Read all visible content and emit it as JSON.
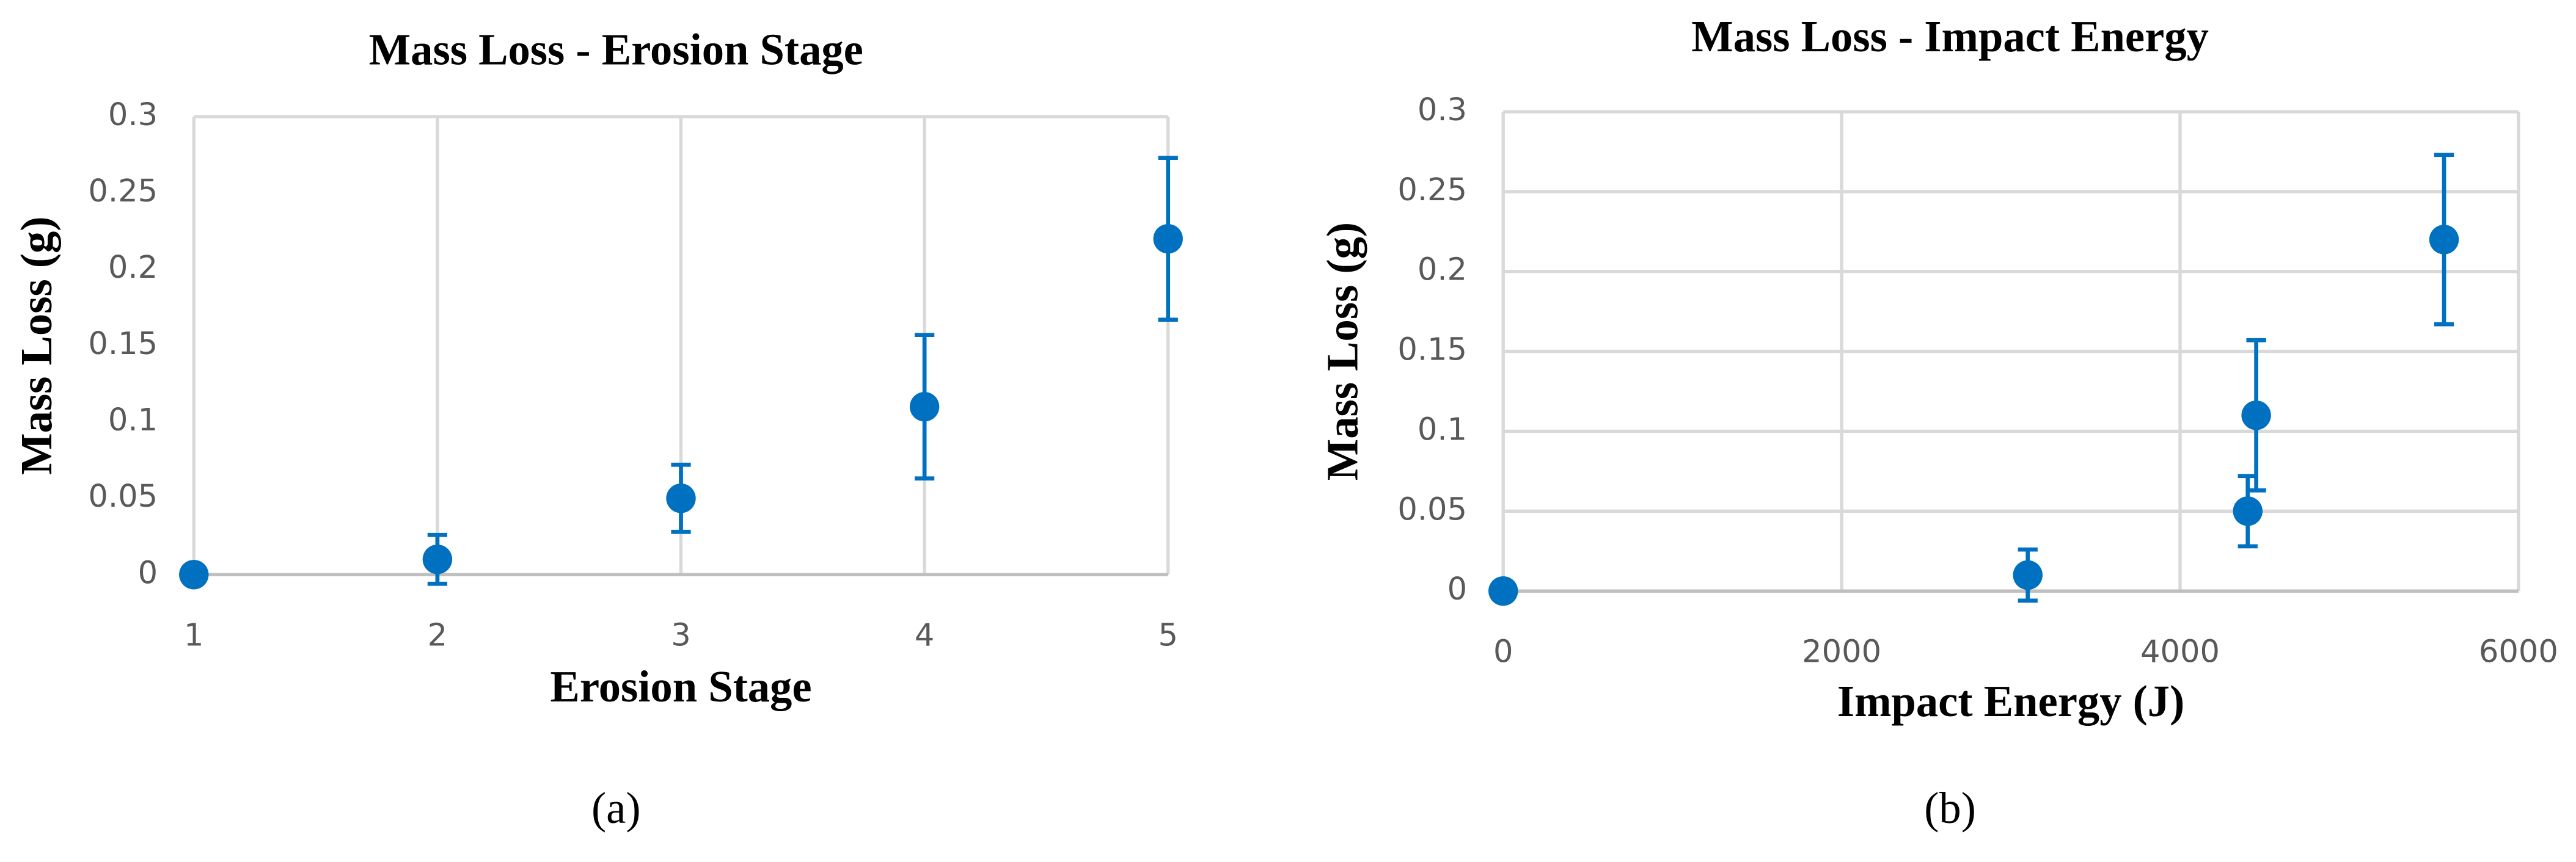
{
  "chart_data": [
    {
      "type": "scatter",
      "title": "Mass Loss - Erosion Stage",
      "xlabel": "Erosion Stage",
      "ylabel": "Mass Loss (g)",
      "caption": "(a)",
      "x": [
        1,
        2,
        3,
        4,
        5
      ],
      "series": [
        {
          "color": "#0070c0",
          "values": [
            0,
            0.01,
            0.05,
            0.11,
            0.22
          ],
          "errors": [
            0,
            0.016,
            0.022,
            0.047,
            0.053
          ]
        }
      ],
      "xlim": [
        1,
        5
      ],
      "xticks": [
        1,
        2,
        3,
        4,
        5
      ],
      "ylim": [
        0,
        0.3
      ],
      "yticks": [
        0,
        0.05,
        0.1,
        0.15,
        0.2,
        0.25,
        0.3
      ],
      "grid": "x"
    },
    {
      "type": "scatter",
      "title": "Mass Loss - Impact Energy",
      "xlabel": "Impact Energy (J)",
      "ylabel": "Mass Loss (g)",
      "caption": "(b)",
      "x": [
        0,
        3100,
        4400,
        4450,
        5560
      ],
      "series": [
        {
          "color": "#0070c0",
          "values": [
            0,
            0.01,
            0.05,
            0.11,
            0.22
          ],
          "errors": [
            0,
            0.016,
            0.022,
            0.047,
            0.053
          ]
        }
      ],
      "xlim": [
        0,
        6000
      ],
      "xticks": [
        0,
        2000,
        4000,
        6000
      ],
      "ylim": [
        0,
        0.3
      ],
      "yticks": [
        0,
        0.05,
        0.1,
        0.15,
        0.2,
        0.25,
        0.3
      ],
      "grid": "both"
    }
  ]
}
